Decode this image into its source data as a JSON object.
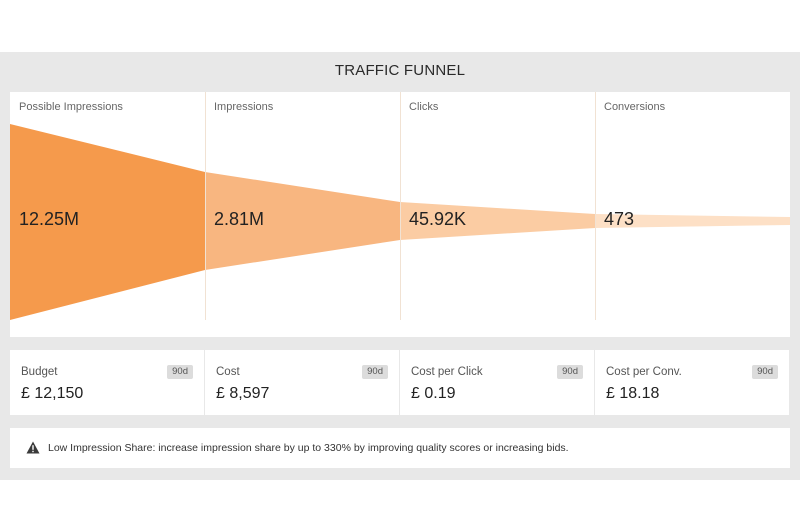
{
  "panel": {
    "title": "TRAFFIC FUNNEL"
  },
  "funnel": {
    "stages": [
      {
        "label": "Possible Impressions",
        "value": "12.25M"
      },
      {
        "label": "Impressions",
        "value": "2.81M"
      },
      {
        "label": "Clicks",
        "value": "45.92K"
      },
      {
        "label": "Conversions",
        "value": "473"
      }
    ],
    "colors": [
      "#f59a4c",
      "#f8b680",
      "#fbcca3",
      "#fde0c6"
    ]
  },
  "cards": [
    {
      "label": "Budget",
      "value": "£ 12,150",
      "badge": "90d"
    },
    {
      "label": "Cost",
      "value": "£ 8,597",
      "badge": "90d"
    },
    {
      "label": "Cost per Click",
      "value": "£ 0.19",
      "badge": "90d"
    },
    {
      "label": "Cost per Conv.",
      "value": "£ 18.18",
      "badge": "90d"
    }
  ],
  "alert": {
    "icon": "warning-icon",
    "text": "Low Impression Share: increase impression share by up to 330% by improving quality scores or increasing bids."
  }
}
